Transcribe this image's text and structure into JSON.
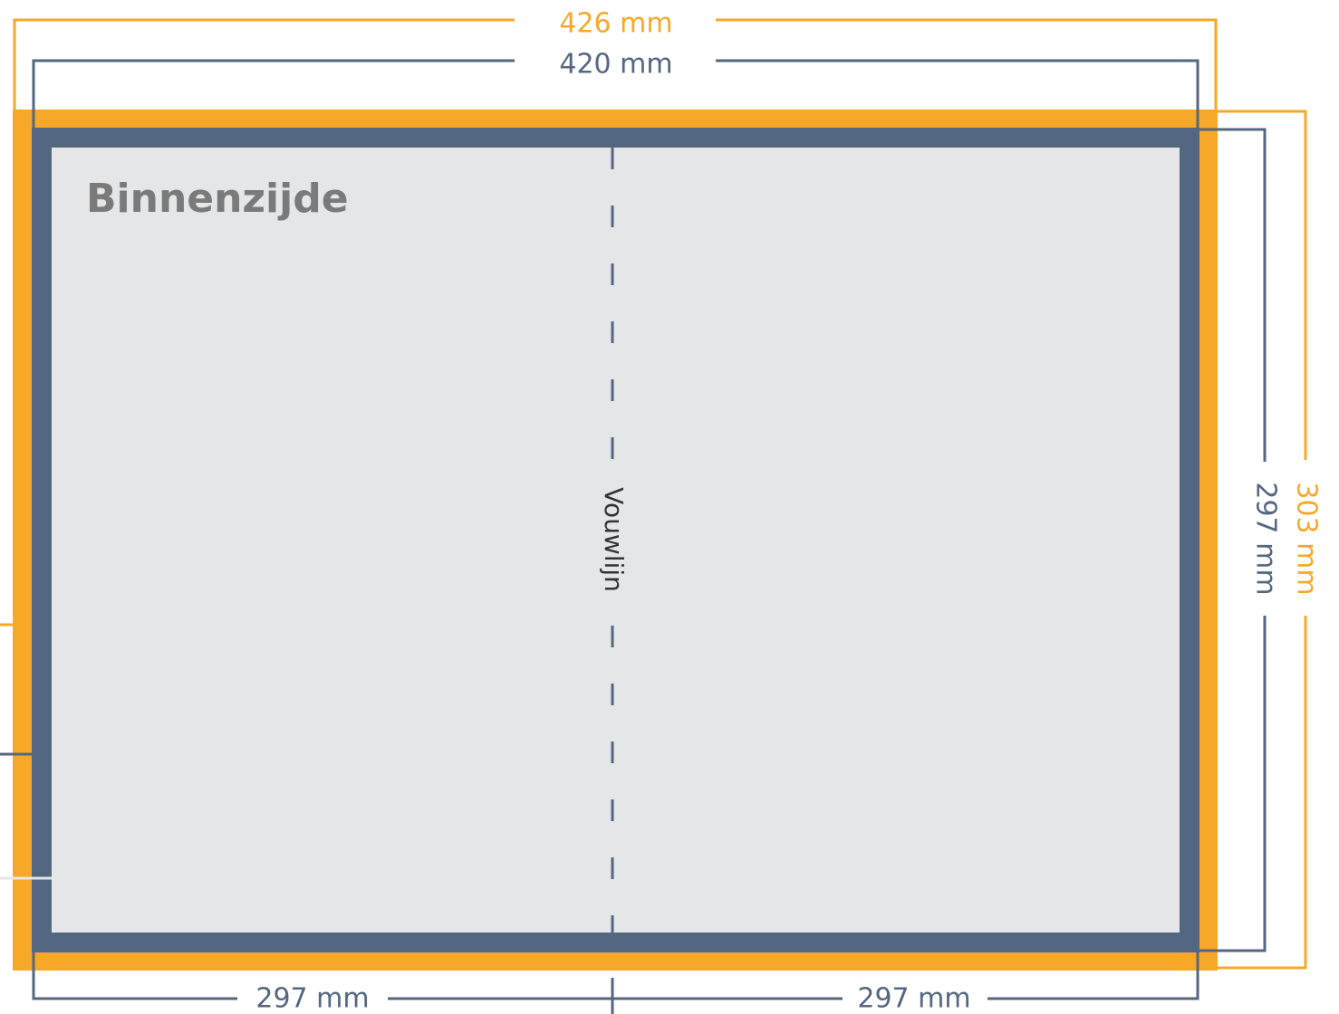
{
  "dimensions": {
    "bleed_width": "426 mm",
    "trim_width": "420 mm",
    "bleed_height": "303 mm",
    "trim_height": "297 mm"
  },
  "title": "Binnenzijde",
  "fold_label": "Vouwlijn",
  "panels": [
    "297 mm",
    "297 mm"
  ]
}
